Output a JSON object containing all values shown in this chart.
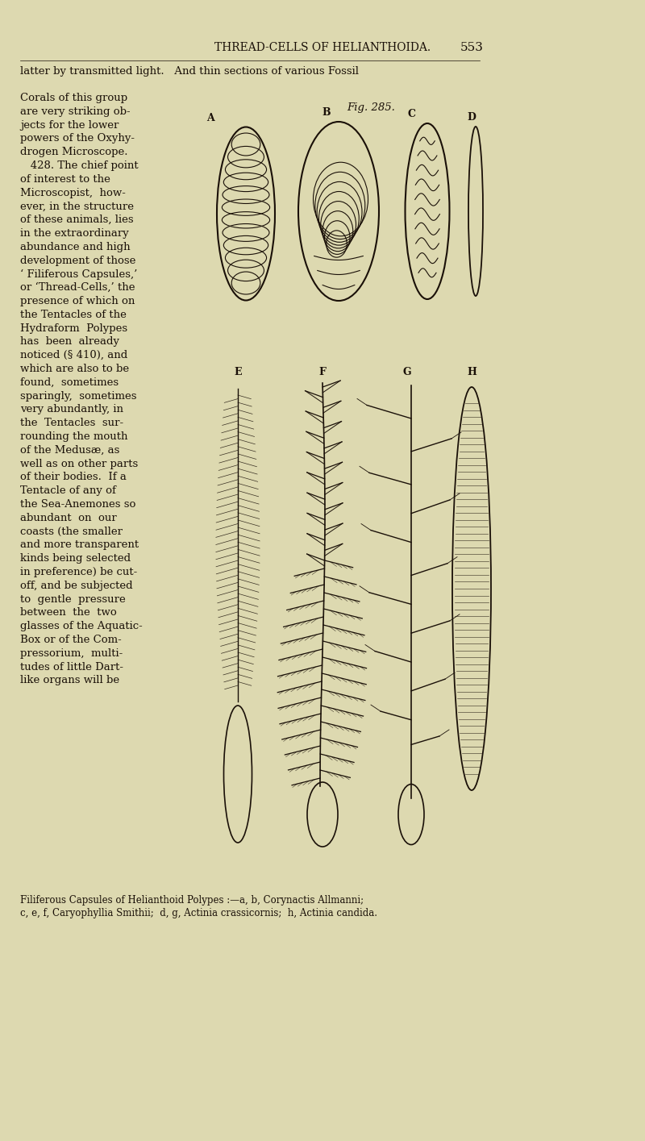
{
  "bg_color": "#ddd9b0",
  "page_width": 8.0,
  "page_height": 14.15,
  "header_text": "THREAD-CELLS OF HELIANTHOIDA.",
  "header_page": "553",
  "top_text_line1": "latter by transmitted light.   And thin sections of various Fossil",
  "fig_label": "Fig. 285.",
  "caption_line1": "Filiferous Capsules of Helianthoid Polypes :—a, b, Corynactis Allmanni;",
  "caption_line2": "c, e, f, Caryophyllia Smithii; d, g, Actinia crassicornis; h, Actinia candida.",
  "body_text": [
    "Corals of this group",
    "are very striking ob-",
    "jects for the lower",
    "powers of the Oxyhy-",
    "drogen Microscope.",
    "   428. The chief point",
    "of interest to the",
    "Microscopist,  how-",
    "ever, in the structure",
    "of these animals, lies",
    "in the extraordinary",
    "abundance and high",
    "development of those",
    "‘ Filiferous Capsules,’",
    "or ‘Thread-Cells,’ the",
    "presence of which on",
    "the Tentacles of the",
    "Hydraform  Polypes",
    "has  been  already",
    "noticed (§ 410), and",
    "which are also to be",
    "found,  sometimes",
    "sparingly,  sometimes",
    "very abundantly, in",
    "the  Tentacles  sur-",
    "rounding the mouth",
    "of the Medusæ, as",
    "well as on other parts",
    "of their bodies.  If a",
    "Tentacle of any of",
    "the Sea-Anemones so",
    "abundant  on  our",
    "coasts (the smaller",
    "and more transparent",
    "kinds being selected",
    "in preference) be cut-",
    "off, and be subjected",
    "to  gentle  pressure",
    "between  the  two",
    "glasses of the Aquatic-",
    "Box or of the Com-",
    "pressorium,  multi-",
    "tudes of little Dart-",
    "like organs will be"
  ],
  "text_color": "#1a1008"
}
